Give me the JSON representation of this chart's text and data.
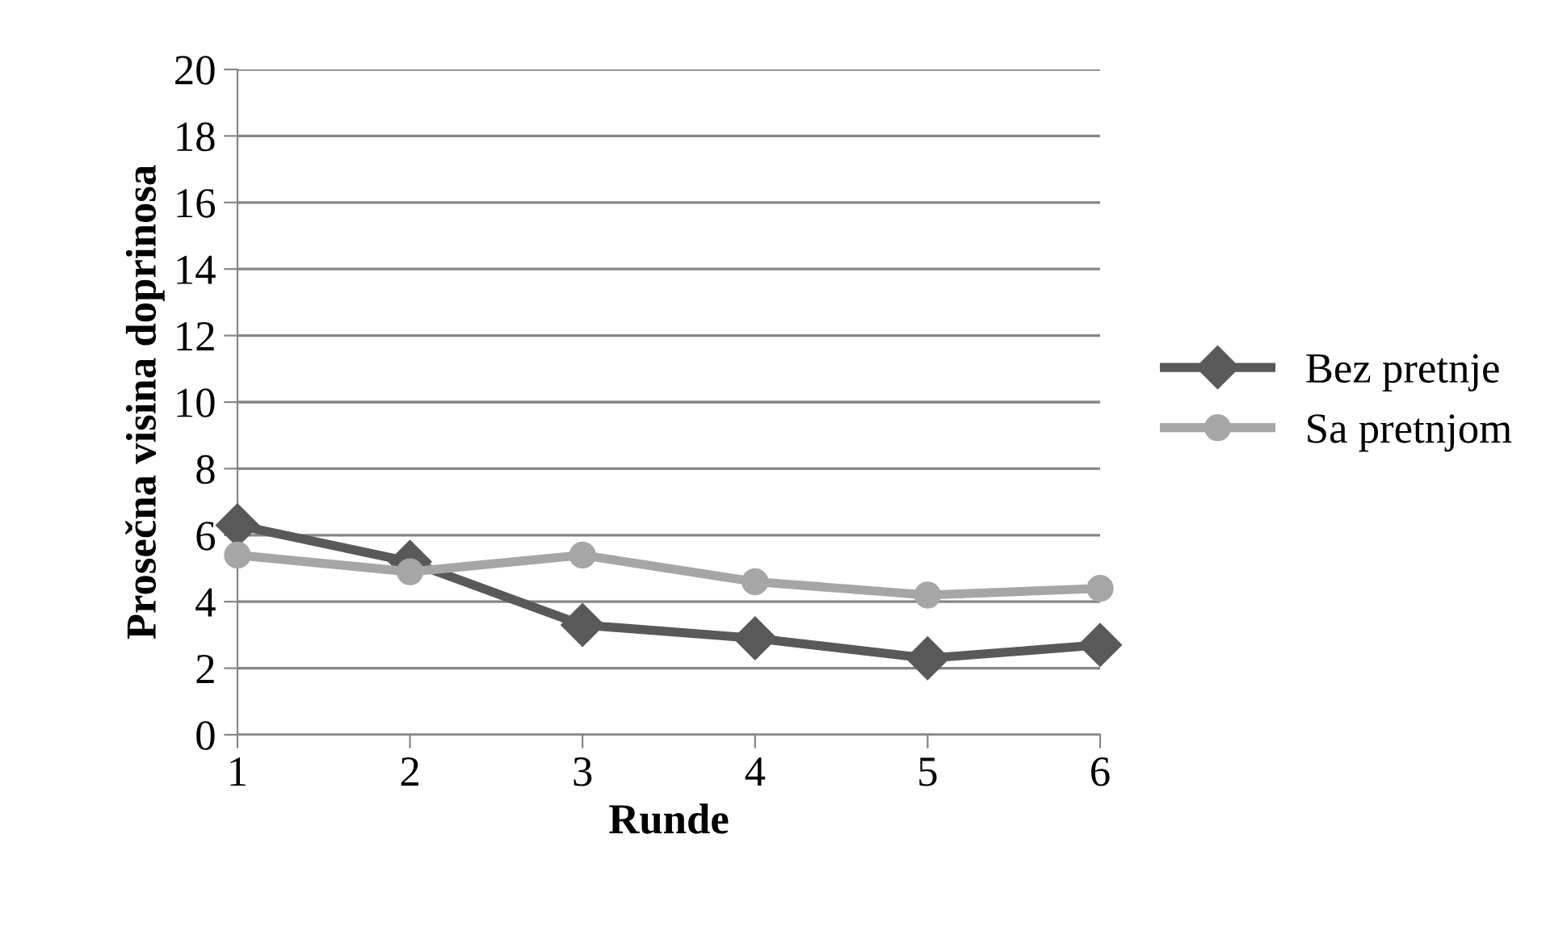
{
  "chart_data": {
    "type": "line",
    "xlabel": "Runde",
    "ylabel": "Prosečna visina doprinosa",
    "categories": [
      "1",
      "2",
      "3",
      "4",
      "5",
      "6"
    ],
    "series": [
      {
        "name": "Bez pretnje",
        "color": "#595959",
        "marker": "diamond",
        "values": [
          6.3,
          5.2,
          3.3,
          2.9,
          2.3,
          2.7
        ]
      },
      {
        "name": "Sa pretnjom",
        "color": "#a6a6a6",
        "marker": "circle",
        "values": [
          5.4,
          4.9,
          5.4,
          4.6,
          4.2,
          4.4
        ]
      }
    ],
    "ylim": [
      0,
      20
    ],
    "yticks": [
      0,
      2,
      4,
      6,
      8,
      10,
      12,
      14,
      16,
      18,
      20
    ],
    "grid": "y",
    "legend": "right",
    "line_style": "solid"
  }
}
